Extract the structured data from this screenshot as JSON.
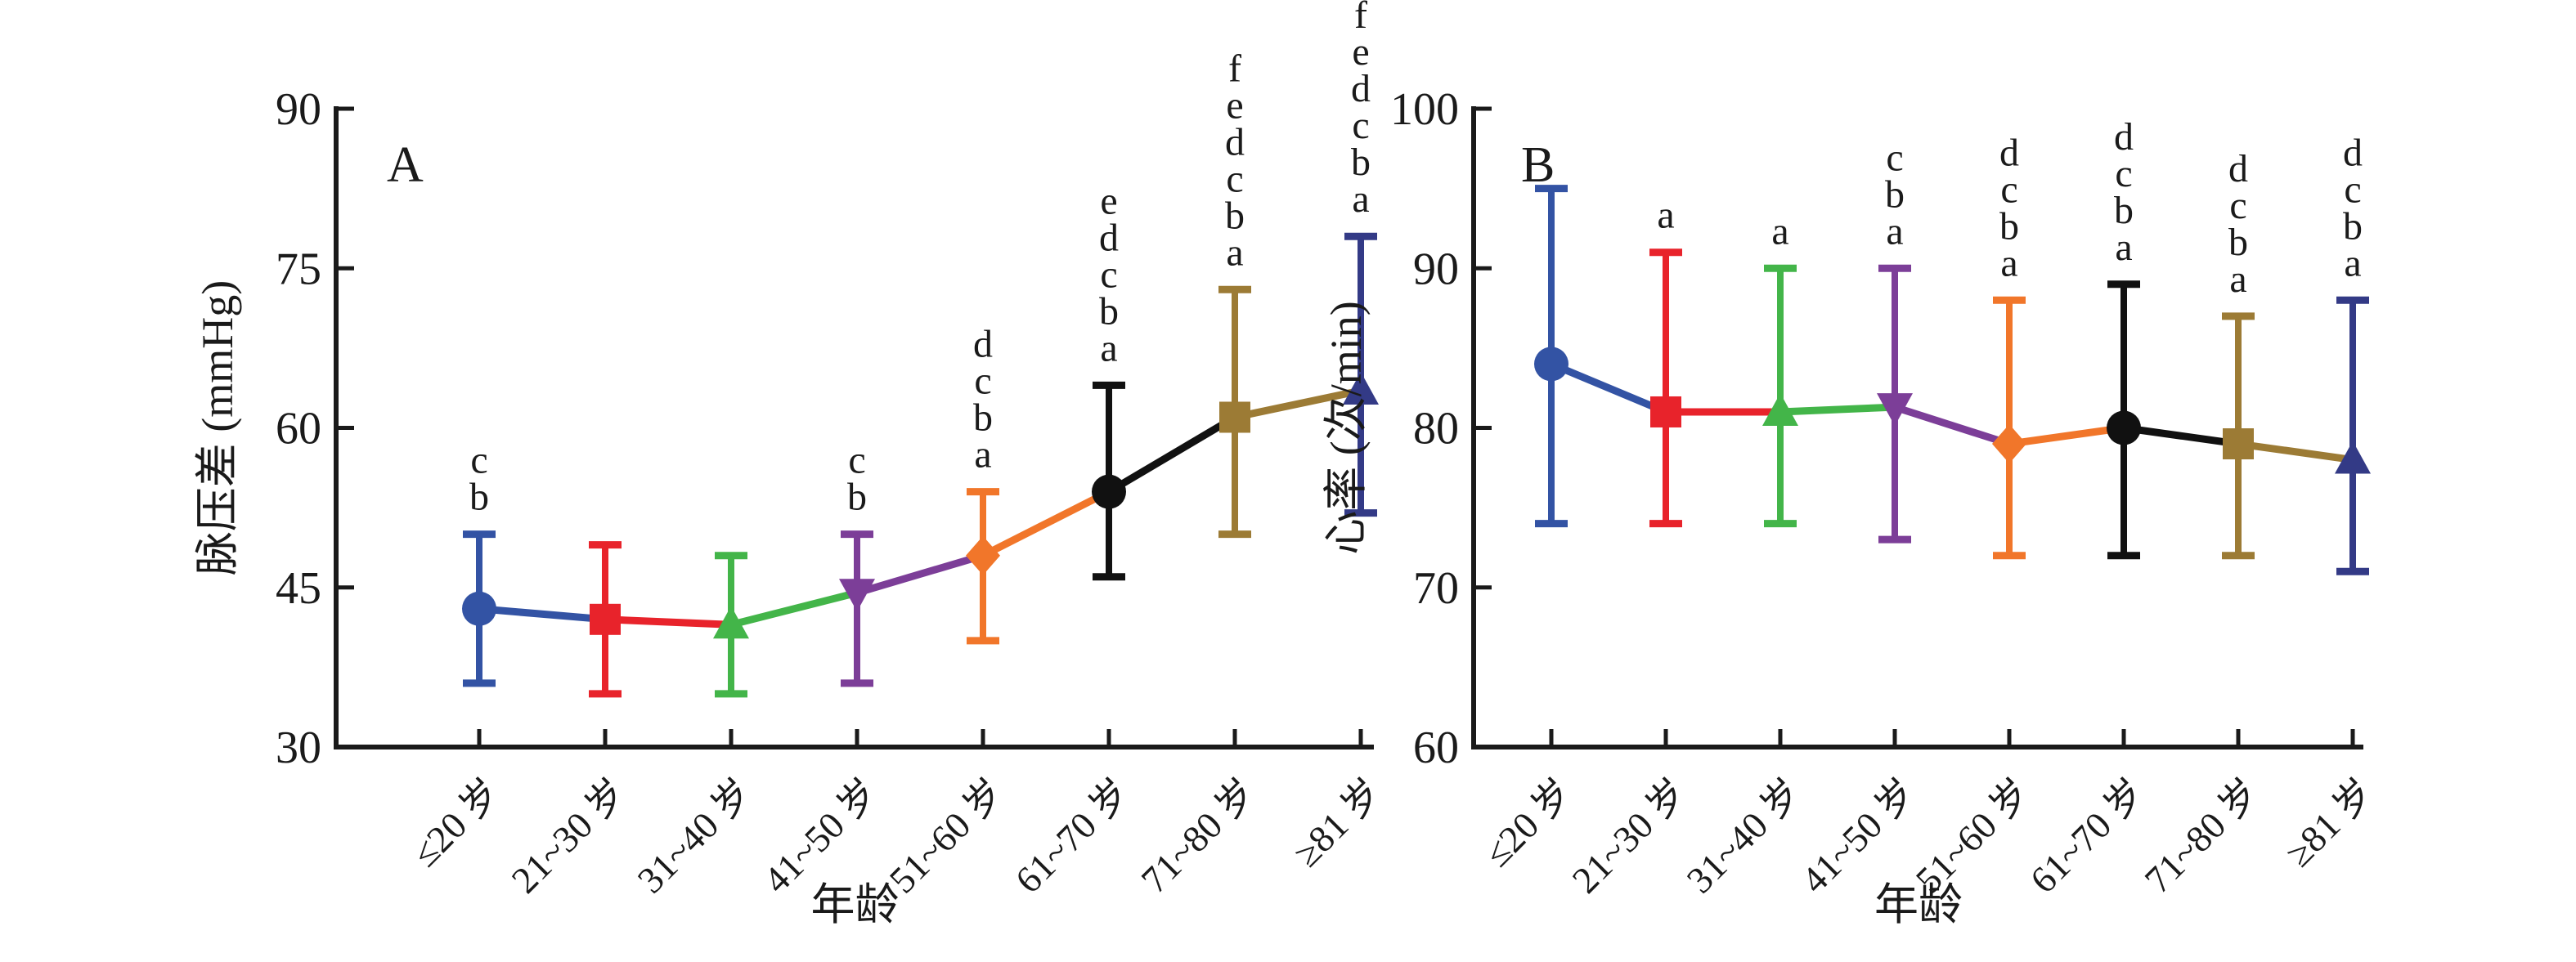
{
  "figure": {
    "background": "#ffffff",
    "tick_color": "#1a1a1a",
    "letter_color": "#1a1a1a"
  },
  "chart_data": [
    {
      "type": "line",
      "style": "errorbar-line",
      "panel_label": "A",
      "xlabel": "年龄",
      "ylabel": "脉压差 (mmHg)",
      "ylim": [
        30,
        90
      ],
      "yticks": [
        30,
        45,
        60,
        75,
        90
      ],
      "grid": false,
      "legend": "none",
      "categories": [
        "≤20 岁",
        "21~30 岁",
        "31~40 岁",
        "41~50 岁",
        "51~60 岁",
        "61~70 岁",
        "71~80 岁",
        "≥81 岁"
      ],
      "points": [
        {
          "category": "≤20 岁",
          "mean": 43,
          "lo": 36,
          "hi": 50,
          "color": "#3353A4",
          "marker": "circle",
          "letters": [
            "c",
            "b"
          ]
        },
        {
          "category": "21~30 岁",
          "mean": 42,
          "lo": 35,
          "hi": 49,
          "color": "#E8232B",
          "marker": "square",
          "letters": []
        },
        {
          "category": "31~40 岁",
          "mean": 41.5,
          "lo": 35,
          "hi": 48,
          "color": "#43B549",
          "marker": "triangle-up",
          "letters": []
        },
        {
          "category": "41~50 岁",
          "mean": 44.5,
          "lo": 36,
          "hi": 50,
          "color": "#7C3E98",
          "marker": "triangle-down",
          "letters": [
            "c",
            "b"
          ]
        },
        {
          "category": "51~60 岁",
          "mean": 48,
          "lo": 40,
          "hi": 54,
          "color": "#F1762A",
          "marker": "diamond",
          "letters": [
            "d",
            "c",
            "b",
            "a"
          ]
        },
        {
          "category": "61~70 岁",
          "mean": 54,
          "lo": 46,
          "hi": 64,
          "color": "#111111",
          "marker": "circle",
          "letters": [
            "e",
            "d",
            "c",
            "b",
            "a"
          ]
        },
        {
          "category": "71~80 岁",
          "mean": 61,
          "lo": 50,
          "hi": 73,
          "color": "#9C7B35",
          "marker": "square",
          "letters": [
            "f",
            "e",
            "d",
            "c",
            "b",
            "a"
          ]
        },
        {
          "category": "≥81 岁",
          "mean": 63.5,
          "lo": 52,
          "hi": 78,
          "color": "#333A86",
          "marker": "triangle-up",
          "letters": [
            "f",
            "e",
            "d",
            "c",
            "b",
            "a"
          ]
        }
      ]
    },
    {
      "type": "line",
      "style": "errorbar-line",
      "panel_label": "B",
      "xlabel": "年龄",
      "ylabel": "心率 (次/min)",
      "ylim": [
        60,
        100
      ],
      "yticks": [
        60,
        70,
        80,
        90,
        100
      ],
      "grid": false,
      "legend": "none",
      "categories": [
        "≤20 岁",
        "21~30 岁",
        "31~40 岁",
        "41~50 岁",
        "51~60 岁",
        "61~70 岁",
        "71~80 岁",
        "≥81 岁"
      ],
      "points": [
        {
          "category": "≤20 岁",
          "mean": 84,
          "lo": 74,
          "hi": 95,
          "color": "#3353A4",
          "marker": "circle",
          "letters": []
        },
        {
          "category": "21~30 岁",
          "mean": 81,
          "lo": 74,
          "hi": 91,
          "color": "#E8232B",
          "marker": "square",
          "letters": [
            "a"
          ]
        },
        {
          "category": "31~40 岁",
          "mean": 81,
          "lo": 74,
          "hi": 90,
          "color": "#43B549",
          "marker": "triangle-up",
          "letters": [
            "a"
          ]
        },
        {
          "category": "41~50 岁",
          "mean": 81.3,
          "lo": 73,
          "hi": 90,
          "color": "#7C3E98",
          "marker": "triangle-down",
          "letters": [
            "c",
            "b",
            "a"
          ]
        },
        {
          "category": "51~60 岁",
          "mean": 79,
          "lo": 72,
          "hi": 88,
          "color": "#F1762A",
          "marker": "diamond",
          "letters": [
            "d",
            "c",
            "b",
            "a"
          ]
        },
        {
          "category": "61~70 岁",
          "mean": 80,
          "lo": 72,
          "hi": 89,
          "color": "#111111",
          "marker": "circle",
          "letters": [
            "d",
            "c",
            "b",
            "a"
          ]
        },
        {
          "category": "71~80 岁",
          "mean": 79,
          "lo": 72,
          "hi": 87,
          "color": "#9C7B35",
          "marker": "square",
          "letters": [
            "d",
            "c",
            "b",
            "a"
          ]
        },
        {
          "category": "≥81 岁",
          "mean": 78,
          "lo": 71,
          "hi": 88,
          "color": "#333A86",
          "marker": "triangle-up",
          "letters": [
            "d",
            "c",
            "b",
            "a"
          ]
        }
      ]
    }
  ]
}
